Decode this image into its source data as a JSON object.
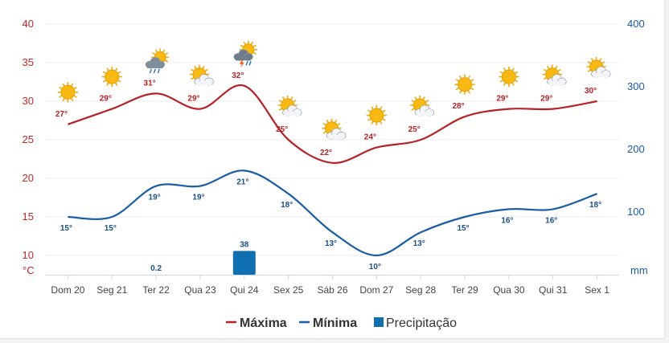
{
  "legend": {
    "max_label": "Máxima",
    "min_label": "Mínima",
    "precip_label": "Precipitação"
  },
  "axes": {
    "left_unit": "°C",
    "right_unit": "mm"
  },
  "colors": {
    "max": "#b62226",
    "min": "#1a5da6",
    "precip": "#0f6fb0",
    "grid": "#ececec"
  },
  "chart_data": {
    "type": "line",
    "categories": [
      "Dom 20",
      "Seg 21",
      "Ter 22",
      "Qua 23",
      "Qui 24",
      "Sex 25",
      "Sáb 26",
      "Dom 27",
      "Seg 28",
      "Ter 29",
      "Qua 30",
      "Qui 31",
      "Sex 1"
    ],
    "series": [
      {
        "name": "Máxima",
        "axis": "left",
        "values": [
          27,
          29,
          31,
          29,
          32,
          25,
          22,
          24,
          25,
          28,
          29,
          29,
          30
        ],
        "labels": [
          "27°",
          "29°",
          "31°",
          "29°",
          "32°",
          "25°",
          "22°",
          "24°",
          "25°",
          "28°",
          "29°",
          "29°",
          "30°"
        ]
      },
      {
        "name": "Mínima",
        "axis": "left",
        "values": [
          15,
          15,
          19,
          19,
          21,
          18,
          13,
          10,
          13,
          15,
          16,
          16,
          18
        ],
        "labels": [
          "15°",
          "15°",
          "19°",
          "19°",
          "21°",
          "18°",
          "13°",
          "10°",
          "13°",
          "15°",
          "16°",
          "16°",
          "18°"
        ]
      },
      {
        "name": "Precipitação",
        "type": "bar",
        "axis": "right",
        "values": [
          0,
          0,
          0.2,
          0,
          38,
          0,
          0,
          0,
          0,
          0,
          0,
          0,
          0
        ],
        "labels": [
          "",
          "",
          "0.2",
          "",
          "38",
          "",
          "",
          "",
          "",
          "",
          "",
          "",
          ""
        ]
      }
    ],
    "y_left": {
      "ylim": [
        7.5,
        40
      ],
      "ticks": [
        "10",
        "15",
        "20",
        "25",
        "30",
        "35",
        "40"
      ]
    },
    "y_right": {
      "ylim": [
        0,
        400
      ],
      "ticks": [
        "100",
        "200",
        "300",
        "400"
      ]
    },
    "weather_icons": [
      "sun-icon",
      "sun-icon",
      "sun-rain-cloud-icon",
      "sun-cloud-icon",
      "thunderstorm-icon",
      "sun-cloud-icon",
      "sun-cloud-icon",
      "sun-icon",
      "sun-cloud-icon",
      "sun-icon",
      "sun-icon",
      "sun-cloud-icon",
      "sun-cloud-icon"
    ],
    "grid": true,
    "legend_position": "bottom-center"
  }
}
